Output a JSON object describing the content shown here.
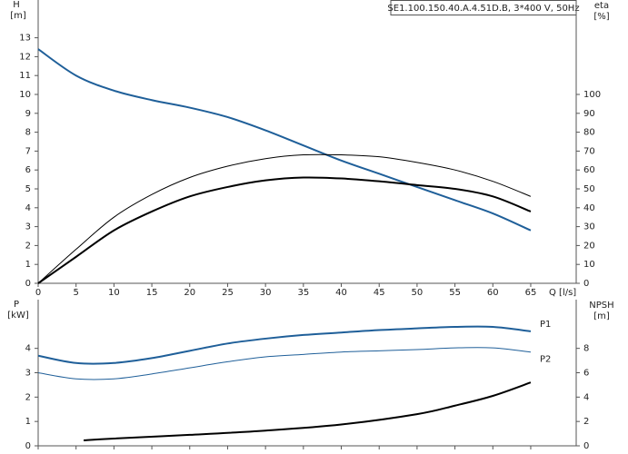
{
  "chart_data": [
    {
      "type": "line",
      "title": "SE1.100.150.40.A.4.51D.B, 3*400 V, 50Hz",
      "ylabel": "H",
      "yunit": "[m]",
      "y2label": "eta",
      "y2unit": "[%]",
      "xlabel": "Q [l/s]",
      "x": [
        0,
        5,
        10,
        15,
        20,
        25,
        30,
        35,
        40,
        45,
        50,
        55,
        60,
        65
      ],
      "xlim": [
        0,
        71
      ],
      "xticks": [
        0,
        5,
        10,
        15,
        20,
        25,
        30,
        35,
        40,
        45,
        50,
        55,
        60,
        65
      ],
      "ylim": [
        0,
        15
      ],
      "yticks": [
        0,
        1,
        2,
        3,
        4,
        5,
        6,
        7,
        8,
        9,
        10,
        11,
        12,
        13
      ],
      "y2lim": [
        0,
        150
      ],
      "y2ticks": [
        0,
        10,
        20,
        30,
        40,
        50,
        60,
        70,
        80,
        90,
        100
      ],
      "show_xtick_labels": true,
      "series": [
        {
          "color": "#1f5f99",
          "width": 2,
          "values": [
            12.4,
            11.0,
            10.2,
            9.7,
            9.3,
            8.8,
            8.1,
            7.3,
            6.5,
            5.8,
            5.1,
            4.4,
            3.7,
            2.8
          ]
        },
        {
          "color": "#000000",
          "width": 1,
          "axis": "y2",
          "values": [
            0,
            18,
            35,
            47,
            56,
            62,
            66,
            68,
            68,
            67,
            64,
            60,
            54,
            46
          ]
        },
        {
          "color": "#000000",
          "width": 2,
          "axis": "y2",
          "values": [
            0,
            14,
            28,
            38,
            46,
            51,
            54.5,
            56,
            55.5,
            54,
            52,
            50,
            46,
            38
          ]
        }
      ]
    },
    {
      "type": "line",
      "ylabel": "P",
      "yunit": "[kW]",
      "y2label": "NPSH",
      "y2unit": "[m]",
      "x": [
        0,
        5,
        10,
        15,
        20,
        25,
        30,
        35,
        40,
        45,
        50,
        55,
        60,
        65
      ],
      "xlim": [
        0,
        71
      ],
      "xticks": [
        0,
        5,
        10,
        15,
        20,
        25,
        30,
        35,
        40,
        45,
        50,
        55,
        60,
        65
      ],
      "ylim": [
        0,
        6
      ],
      "yticks": [
        0,
        1,
        2,
        3,
        4
      ],
      "y2lim": [
        0,
        12
      ],
      "y2ticks": [
        0,
        2,
        4,
        6,
        8
      ],
      "show_xtick_labels": false,
      "series": [
        {
          "name": "P1",
          "color": "#1f5f99",
          "width": 2,
          "values": [
            3.7,
            3.4,
            3.4,
            3.6,
            3.9,
            4.2,
            4.4,
            4.55,
            4.65,
            4.75,
            4.82,
            4.88,
            4.88,
            4.7
          ]
        },
        {
          "name": "P2",
          "color": "#1f5f99",
          "width": 1,
          "values": [
            3.0,
            2.75,
            2.75,
            2.95,
            3.2,
            3.45,
            3.65,
            3.75,
            3.85,
            3.9,
            3.95,
            4.02,
            4.02,
            3.85
          ]
        },
        {
          "color": "#000000",
          "width": 2,
          "axis": "y2",
          "x": [
            6,
            10,
            20,
            30,
            40,
            50,
            55,
            60,
            65
          ],
          "values": [
            0.45,
            0.6,
            0.9,
            1.25,
            1.75,
            2.6,
            3.3,
            4.1,
            5.2
          ]
        }
      ]
    }
  ]
}
